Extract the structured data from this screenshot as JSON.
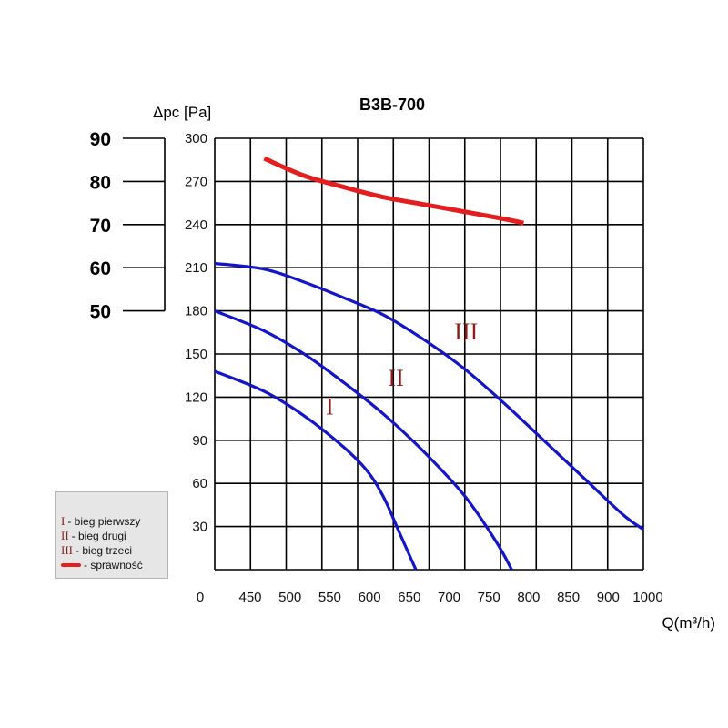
{
  "chart_data": {
    "type": "line",
    "title": "B3B-700",
    "ylabel": "Δpc [Pa]",
    "xlabel": "Q(m³/h)",
    "xlim": [
      450,
      1000
    ],
    "ylim": [
      0,
      300
    ],
    "x_ticks": [
      "450",
      "500",
      "550",
      "600",
      "650",
      "700",
      "750",
      "800",
      "850",
      "900",
      "1000"
    ],
    "x_zero_label": "0",
    "y_ticks": [
      "30",
      "60",
      "90",
      "120",
      "150",
      "180",
      "210",
      "240",
      "270",
      "300"
    ],
    "grid": true,
    "secondary_axis": {
      "ticks": [
        "90",
        "80",
        "70",
        "60",
        "50"
      ],
      "maps_to": [
        300,
        270,
        240,
        210,
        180
      ]
    },
    "series": [
      {
        "name": "I",
        "color": "#1414c8",
        "points": [
          [
            438,
            138
          ],
          [
            500,
            124
          ],
          [
            550,
            107
          ],
          [
            600,
            85
          ],
          [
            630,
            68
          ],
          [
            650,
            50
          ],
          [
            670,
            25
          ],
          [
            690,
            0
          ]
        ]
      },
      {
        "name": "II",
        "color": "#1414c8",
        "points": [
          [
            438,
            180
          ],
          [
            500,
            166
          ],
          [
            550,
            150
          ],
          [
            600,
            130
          ],
          [
            650,
            108
          ],
          [
            700,
            82
          ],
          [
            750,
            52
          ],
          [
            790,
            20
          ],
          [
            810,
            0
          ]
        ]
      },
      {
        "name": "III",
        "color": "#1414c8",
        "points": [
          [
            438,
            213
          ],
          [
            500,
            209
          ],
          [
            550,
            200
          ],
          [
            600,
            189
          ],
          [
            650,
            177
          ],
          [
            700,
            160
          ],
          [
            750,
            140
          ],
          [
            800,
            116
          ],
          [
            850,
            90
          ],
          [
            900,
            64
          ],
          [
            950,
            38
          ],
          [
            975,
            28
          ]
        ]
      },
      {
        "name": "sprawność",
        "color": "#e41e1e",
        "points": [
          [
            500,
            286
          ],
          [
            550,
            274
          ],
          [
            600,
            266
          ],
          [
            650,
            259
          ],
          [
            700,
            254
          ],
          [
            750,
            249
          ],
          [
            800,
            244
          ],
          [
            825,
            241
          ]
        ]
      }
    ],
    "annotations": [
      {
        "text": "I",
        "x": 582,
        "y": 108
      },
      {
        "text": "II",
        "x": 665,
        "y": 128
      },
      {
        "text": "III",
        "x": 753,
        "y": 160
      }
    ]
  },
  "legend": {
    "items": [
      {
        "symbol": "I",
        "label": " - bieg pierwszy"
      },
      {
        "symbol": "II",
        "label": " - bieg drugi"
      },
      {
        "symbol": "III",
        "label": " - bieg trzeci"
      },
      {
        "symbol": "",
        "label": " - sprawność"
      }
    ]
  }
}
